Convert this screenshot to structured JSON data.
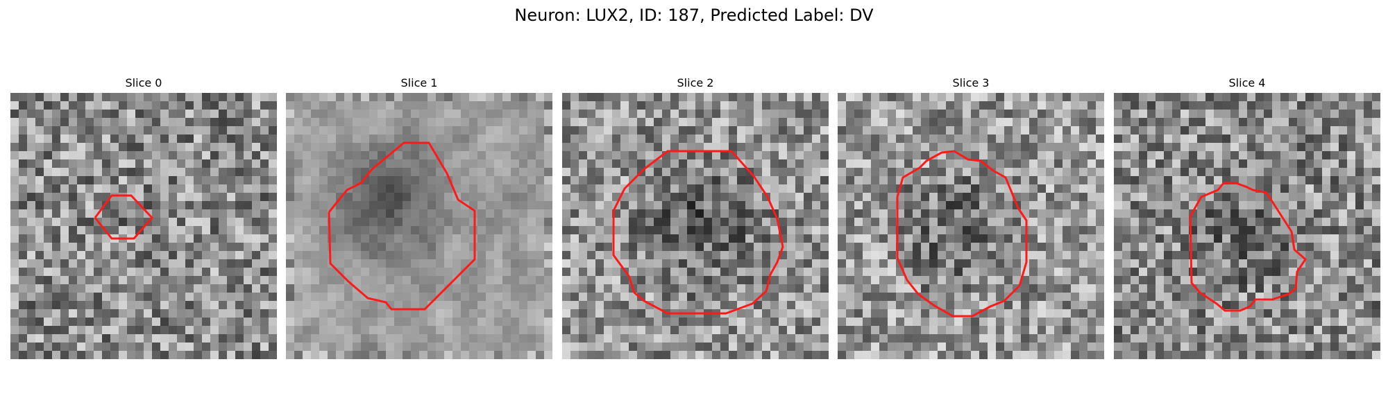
{
  "figure": {
    "title": "Neuron: LUX2, ID: 187, Predicted Label: DV",
    "contour_color": "#ff1a1a"
  },
  "panels": [
    {
      "title": "Slice 0"
    },
    {
      "title": "Slice 1"
    },
    {
      "title": "Slice 2"
    },
    {
      "title": "Slice 3"
    },
    {
      "title": "Slice 4"
    }
  ]
}
